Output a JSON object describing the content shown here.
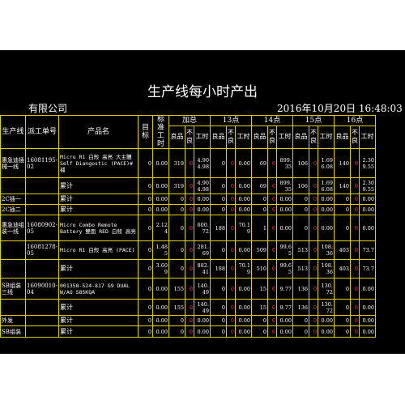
{
  "title": "生产线每小时产出",
  "company": "有限公司",
  "datetime": "2016年10月20日  16:48:03",
  "colors": {
    "background": "#000000",
    "grid": "#d8d000",
    "text": "#ffffff",
    "alert": "#ff2a2a"
  },
  "headers": {
    "line": "生产线",
    "order": "派工单号",
    "product": "产品名",
    "target": "目标",
    "std_hours": "标准工时",
    "groups": [
      "加总",
      "13点",
      "14点",
      "15点",
      "16点"
    ],
    "sub": [
      "良品",
      "不良",
      "工时"
    ]
  },
  "rows": [
    {
      "line": "惠急迪插械一线",
      "order": "16081195-02",
      "product": "Micro R1 白殼 高亮 大主體 Self Diangostic (PACE)#補",
      "c": [
        "0",
        "0.00",
        "319",
        "0",
        "4.90 4.98",
        "0",
        "0",
        "0.00",
        "69",
        "0",
        "899. 35",
        "106",
        "0",
        "1.69 6.08",
        "140",
        "0",
        "2.30 9.55"
      ]
    },
    {
      "line": "",
      "order": "",
      "product": "累计",
      "c": [
        "0",
        "0.00",
        "319",
        "0",
        "4.90 4.98",
        "0",
        "0",
        "0.00",
        "69",
        "0",
        "899. 35",
        "106",
        "0",
        "1.69 6.08",
        "140",
        "0",
        "2.30 9.55"
      ]
    },
    {
      "line": "2C插一",
      "order": "",
      "product": "累计",
      "c": [
        "0",
        "0.00",
        "0",
        "0",
        "0.00",
        "0",
        "0",
        "0.00",
        "0",
        "0",
        "0.00",
        "0",
        "0",
        "0.00",
        "0",
        "0",
        "0.00"
      ]
    },
    {
      "line": "2C插二",
      "order": "",
      "product": "累计",
      "c": [
        "0",
        "0.00",
        "0",
        "0",
        "0.00",
        "0",
        "0",
        "0.00",
        "0",
        "0",
        "0.00",
        "0",
        "0",
        "0.00",
        "0",
        "0",
        "0.00"
      ]
    },
    {
      "line": "惠急迪组装一线",
      "order": "16080902-05",
      "product": "Micro Combo Remote Battery 雙面 RED 白殼 高亮",
      "c": [
        "0",
        "2.12 4",
        "0",
        "0",
        "600. 72",
        "188",
        "0",
        "70.1 9",
        "1",
        "0",
        "0.00",
        "0",
        "0",
        "0.00",
        "0",
        "0",
        "0.00"
      ]
    },
    {
      "line": "",
      "order": "16081278-05",
      "product": "Micro R1 白殼 高亮 (PACE)",
      "c": [
        "0",
        "1.48 5",
        "0",
        "0",
        "281. 69",
        "0",
        "0",
        "0.00",
        "509",
        "0",
        "99.6 5",
        "513",
        "0",
        "108. 36",
        "403",
        "0",
        "73.7"
      ]
    },
    {
      "line": "",
      "order": "",
      "product": "累计",
      "c": [
        "0",
        "3.60 9",
        "0",
        "0",
        "882. 41",
        "188",
        "0",
        "70.1 9",
        "510",
        "0",
        "99.6 5",
        "513",
        "0",
        "108. 36",
        "403",
        "0",
        "73.7"
      ]
    },
    {
      "line": "SB组装三线",
      "order": "16090010-04",
      "product": "001358-524-817 G9 DUAL W/AO S85KQA",
      "c": [
        "0",
        "0.00",
        "155",
        "0",
        "140. 49",
        "0",
        "0",
        "0.00",
        "15",
        "0",
        "9.77",
        "136",
        "0",
        "130. 72",
        "0",
        "0",
        "0.00"
      ]
    },
    {
      "line": "",
      "order": "",
      "product": "累计",
      "c": [
        "0",
        "0.00",
        "155",
        "0",
        "140. 49",
        "0",
        "0",
        "0.00",
        "15",
        "0",
        "9.77",
        "136",
        "0",
        "130. 72",
        "0",
        "0",
        "0.00"
      ]
    },
    {
      "line": "外发",
      "order": "",
      "product": "累计",
      "c": [
        "0",
        "0.00",
        "0",
        "0",
        "0.00",
        "0",
        "0",
        "0.00",
        "0",
        "0",
        "0.00",
        "0",
        "0",
        "0.00",
        "0",
        "0",
        "0.00"
      ]
    },
    {
      "line": "SB组装",
      "order": "",
      "product": "累计",
      "c": [
        "0",
        "0.00",
        "0",
        "0",
        "0.00",
        "0",
        "0",
        "0.00",
        "0",
        "0",
        "0.00",
        "0",
        "0",
        "0.00",
        "0",
        "0",
        "0.00"
      ]
    }
  ]
}
